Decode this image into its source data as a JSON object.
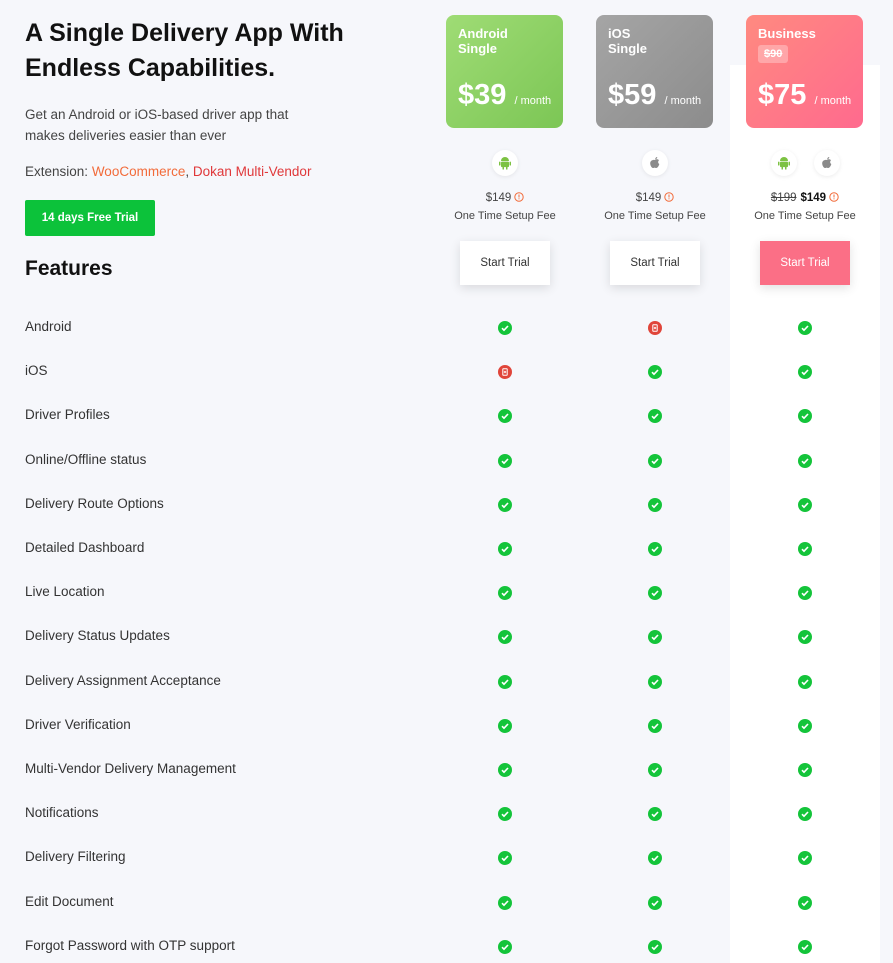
{
  "header": {
    "title": "A Single Delivery App With Endless Capabilities.",
    "description": "Get an Android or iOS-based driver app that makes deliveries easier than ever",
    "extension_label": "Extension:",
    "extensions": [
      "WooCommerce",
      "Dokan Multi-Vendor"
    ],
    "separator": ",",
    "trial_button": "14 days Free Trial"
  },
  "features_title": "Features",
  "plans": [
    {
      "name": "Android Single",
      "price": "$39",
      "period": "/ month",
      "setup_price": "$149",
      "setup_label": "One Time Setup Fee",
      "button": "Start Trial"
    },
    {
      "name": "iOS Single",
      "price": "$59",
      "period": "/ month",
      "setup_price": "$149",
      "setup_label": "One Time Setup Fee",
      "button": "Start Trial"
    },
    {
      "name": "Business",
      "old_price": "$90",
      "price": "$75",
      "period": "/ month",
      "setup_old_price": "$199",
      "setup_price": "$149",
      "setup_label": "One Time Setup Fee",
      "button": "Start Trial"
    }
  ],
  "features": [
    {
      "name": "Android",
      "included": [
        true,
        false,
        true
      ]
    },
    {
      "name": "iOS",
      "included": [
        false,
        true,
        true
      ]
    },
    {
      "name": "Driver Profiles",
      "included": [
        true,
        true,
        true
      ]
    },
    {
      "name": "Online/Offline status",
      "included": [
        true,
        true,
        true
      ]
    },
    {
      "name": "Delivery Route Options",
      "included": [
        true,
        true,
        true
      ]
    },
    {
      "name": "Detailed Dashboard",
      "included": [
        true,
        true,
        true
      ]
    },
    {
      "name": "Live Location",
      "included": [
        true,
        true,
        true
      ]
    },
    {
      "name": "Delivery Status Updates",
      "included": [
        true,
        true,
        true
      ]
    },
    {
      "name": "Delivery Assignment Acceptance",
      "included": [
        true,
        true,
        true
      ]
    },
    {
      "name": "Driver Verification",
      "included": [
        true,
        true,
        true
      ]
    },
    {
      "name": "Multi-Vendor Delivery Management",
      "included": [
        true,
        true,
        true
      ]
    },
    {
      "name": "Notifications",
      "included": [
        true,
        true,
        true
      ]
    },
    {
      "name": "Delivery Filtering",
      "included": [
        true,
        true,
        true
      ]
    },
    {
      "name": "Edit Document",
      "included": [
        true,
        true,
        true
      ]
    },
    {
      "name": "Forgot Password with OTP support",
      "included": [
        true,
        true,
        true
      ]
    }
  ]
}
